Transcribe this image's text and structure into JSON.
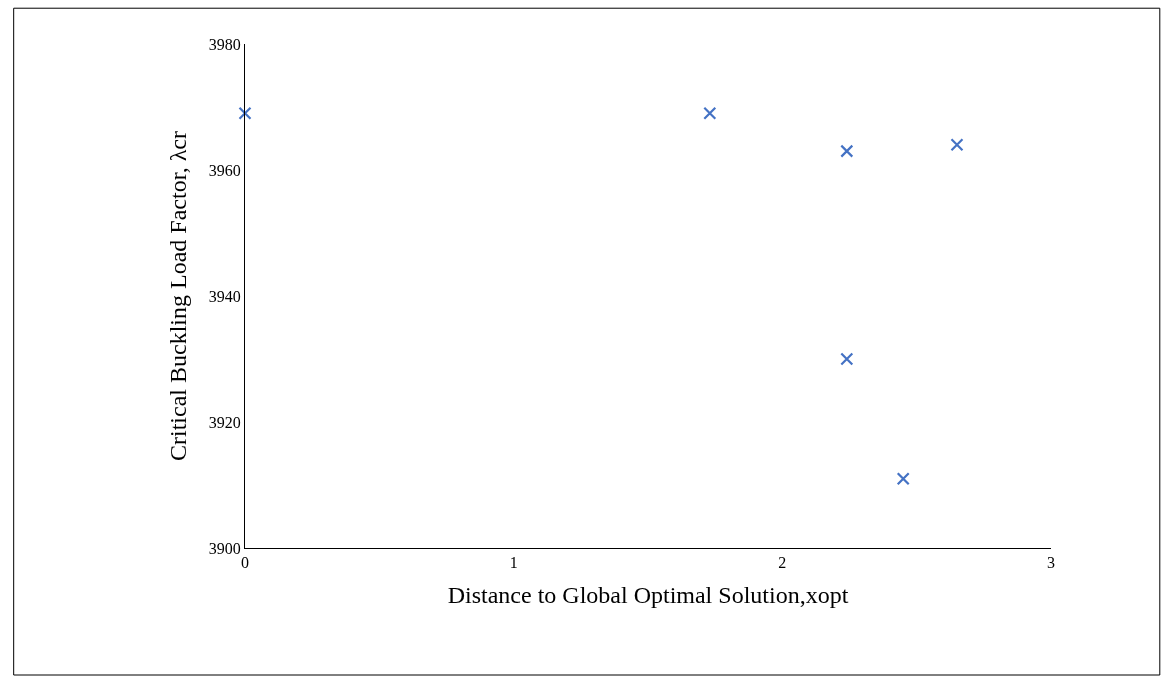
{
  "chart_data": {
    "type": "scatter",
    "xlabel": "Distance to Global Optimal Solution,xopt",
    "ylabel": "Critical Buckling Load Factor, λcr",
    "x": [
      0,
      1.73,
      2.24,
      2.65,
      2.24,
      2.45
    ],
    "values": [
      3969,
      3969,
      3963,
      3964,
      3930,
      3911
    ],
    "color": "#4472c4",
    "marker": "cross",
    "xlim": [
      0,
      3
    ],
    "xticks": [
      0,
      1,
      2,
      3
    ],
    "ylim": [
      3900,
      3980
    ],
    "yticks": [
      3900,
      3920,
      3940,
      3960,
      3980
    ]
  }
}
